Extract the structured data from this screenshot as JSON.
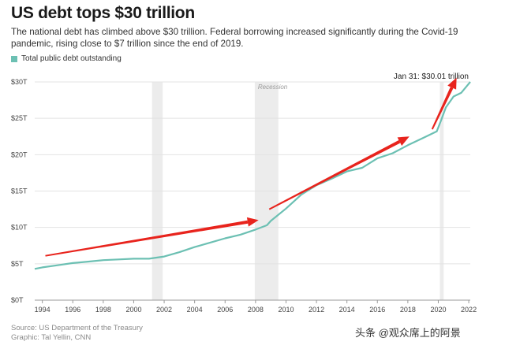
{
  "header": {
    "title": "US debt tops $30 trillion",
    "subtitle": "The national debt has climbed above $30 trillion. Federal borrowing increased significantly during the Covid-19 pandemic, rising close to $7 trillion since the end of 2019."
  },
  "footer": {
    "source": "Source: US Department of the Treasury",
    "graphic": "Graphic: Tal Yellin, CNN",
    "watermark": "头条 @观众席上的阿景"
  },
  "colors": {
    "series": "#6cc0b3",
    "arrow": "#e8241d",
    "shade": "#ececec"
  },
  "chart_data": {
    "type": "line",
    "title": "US debt tops $30 trillion",
    "xlabel": "",
    "ylabel": "",
    "xlim": [
      1993.5,
      2022.1
    ],
    "ylim": [
      0,
      30
    ],
    "x_ticks": [
      1994,
      1996,
      1998,
      2000,
      2002,
      2004,
      2006,
      2008,
      2010,
      2012,
      2014,
      2016,
      2018,
      2020,
      2022
    ],
    "y_ticks": [
      0,
      5,
      10,
      15,
      20,
      25,
      30
    ],
    "y_tick_labels": [
      "$0T",
      "$5T",
      "$10T",
      "$15T",
      "$20T",
      "$25T",
      "$30T"
    ],
    "shaded_periods": [
      {
        "start": 2001.2,
        "end": 2001.9,
        "label": ""
      },
      {
        "start": 2007.95,
        "end": 2009.5,
        "label": "Recession"
      },
      {
        "start": 2020.1,
        "end": 2020.35,
        "label": ""
      }
    ],
    "legend": {
      "position": "top-left",
      "entries": [
        "Total public debt outstanding"
      ]
    },
    "series": [
      {
        "name": "Total public debt outstanding",
        "x": [
          1993.5,
          1994,
          1995,
          1996,
          1997,
          1998,
          1999,
          2000,
          2001,
          2002,
          2003,
          2004,
          2005,
          2006,
          2007,
          2008,
          2008.75,
          2009,
          2010,
          2011,
          2012,
          2013,
          2014,
          2015,
          2016,
          2017,
          2018,
          2019,
          2019.9,
          2020.2,
          2020.5,
          2021,
          2021.5,
          2022.1
        ],
        "values": [
          4.3,
          4.5,
          4.8,
          5.1,
          5.3,
          5.5,
          5.6,
          5.7,
          5.7,
          6.0,
          6.6,
          7.3,
          7.9,
          8.5,
          9.0,
          9.7,
          10.3,
          10.9,
          12.6,
          14.5,
          15.8,
          16.7,
          17.7,
          18.2,
          19.5,
          20.2,
          21.3,
          22.3,
          23.2,
          24.8,
          26.5,
          28.0,
          28.5,
          30.01
        ]
      }
    ],
    "annotations": [
      {
        "x": 2022.1,
        "y": 30.01,
        "text": "Jan 31: $30.01 trillion"
      }
    ]
  }
}
